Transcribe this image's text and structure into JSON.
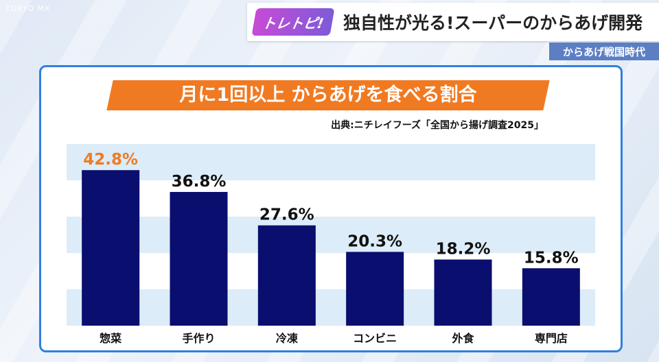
{
  "header": {
    "watermark": "TOKYO MX",
    "corner_logo": "トレトピ!",
    "title": "独自性が光る!スーパーのからあげ開発",
    "subtitle": "からあげ戦国時代"
  },
  "colors": {
    "bar": "#0a0e6e",
    "highlight_label": "#f07a22",
    "label": "#111111",
    "band": "#dcecf8",
    "title_bg": "#f07a22",
    "panel_border": "#2f7fe0"
  },
  "chart_data": {
    "type": "bar",
    "title": "月に1回以上 からあげを食べる割合",
    "source": "出典:ニチレイフーズ「全国から揚げ調査2025」",
    "categories": [
      "惣菜",
      "手作り",
      "冷凍",
      "コンビニ",
      "外食",
      "専門店"
    ],
    "values": [
      42.8,
      36.8,
      27.6,
      20.3,
      18.2,
      15.8
    ],
    "value_labels": [
      "42.8%",
      "36.8%",
      "27.6%",
      "20.3%",
      "18.2%",
      "15.8%"
    ],
    "unit": "%",
    "ylim": [
      0,
      50
    ],
    "highlight_index": 0,
    "grid": "alternating-bands",
    "legend": "none"
  }
}
